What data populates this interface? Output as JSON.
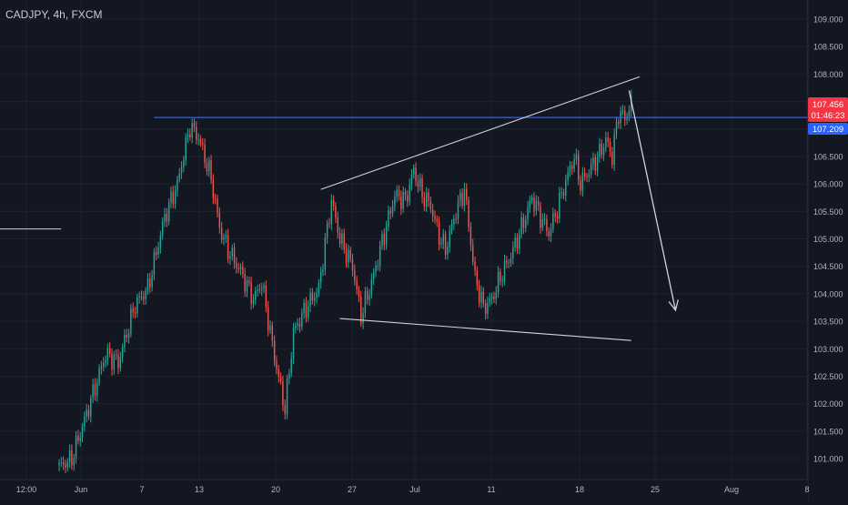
{
  "header": {
    "symbol_title": "CADJPY, 4h, FXCM"
  },
  "colors": {
    "background": "#131722",
    "grid": "#1e222d",
    "axis_text": "#b2b5be",
    "bull": "#26a69a",
    "bear": "#ef5350",
    "level_line": "#2962ff",
    "trend_line": "#d1d4dc",
    "price_badge": "#f23645",
    "level_badge": "#2962ff"
  },
  "price_scale": {
    "labels": [
      "109.000",
      "108.500",
      "108.000",
      "107.500",
      "107.000",
      "106.500",
      "106.000",
      "105.500",
      "105.000",
      "104.500",
      "104.000",
      "103.500",
      "103.000",
      "102.500",
      "102.000",
      "101.500",
      "101.000"
    ]
  },
  "time_scale": {
    "labels": [
      "12:00",
      "Jun",
      "7",
      "13",
      "20",
      "27",
      "Jul",
      "11",
      "18",
      "25",
      "Aug",
      "8"
    ]
  },
  "badges": {
    "last_price": "107.456",
    "countdown": "01:46:23",
    "level_price": "107.209"
  },
  "chart_data": {
    "type": "candlestick",
    "title": "CADJPY, 4h, FXCM",
    "ylim": [
      100.7,
      109.15
    ],
    "horizontal_level": 107.209,
    "last_price": 107.456,
    "anchors": [
      {
        "t": 0,
        "p": 100.85
      },
      {
        "t": 6,
        "p": 101.0
      },
      {
        "t": 12,
        "p": 101.7
      },
      {
        "t": 22,
        "p": 102.9
      },
      {
        "t": 28,
        "p": 102.75
      },
      {
        "t": 36,
        "p": 103.8
      },
      {
        "t": 42,
        "p": 104.1
      },
      {
        "t": 50,
        "p": 105.4
      },
      {
        "t": 56,
        "p": 106.0
      },
      {
        "t": 62,
        "p": 107.05
      },
      {
        "t": 66,
        "p": 106.85
      },
      {
        "t": 72,
        "p": 106.1
      },
      {
        "t": 76,
        "p": 105.2
      },
      {
        "t": 80,
        "p": 104.8
      },
      {
        "t": 86,
        "p": 104.4
      },
      {
        "t": 92,
        "p": 103.9
      },
      {
        "t": 96,
        "p": 104.2
      },
      {
        "t": 102,
        "p": 102.85
      },
      {
        "t": 107,
        "p": 101.9
      },
      {
        "t": 111,
        "p": 103.3
      },
      {
        "t": 117,
        "p": 103.75
      },
      {
        "t": 123,
        "p": 104.1
      },
      {
        "t": 129,
        "p": 105.7
      },
      {
        "t": 133,
        "p": 105.0
      },
      {
        "t": 139,
        "p": 104.5
      },
      {
        "t": 143,
        "p": 103.6
      },
      {
        "t": 148,
        "p": 104.2
      },
      {
        "t": 152,
        "p": 104.8
      },
      {
        "t": 159,
        "p": 105.8
      },
      {
        "t": 164,
        "p": 105.7
      },
      {
        "t": 168,
        "p": 106.25
      },
      {
        "t": 172,
        "p": 105.8
      },
      {
        "t": 176,
        "p": 105.6
      },
      {
        "t": 180,
        "p": 105.05
      },
      {
        "t": 183,
        "p": 104.8
      },
      {
        "t": 188,
        "p": 105.5
      },
      {
        "t": 192,
        "p": 105.9
      },
      {
        "t": 197,
        "p": 104.3
      },
      {
        "t": 201,
        "p": 103.75
      },
      {
        "t": 205,
        "p": 103.9
      },
      {
        "t": 209,
        "p": 104.3
      },
      {
        "t": 214,
        "p": 104.7
      },
      {
        "t": 220,
        "p": 105.3
      },
      {
        "t": 224,
        "p": 105.75
      },
      {
        "t": 228,
        "p": 105.4
      },
      {
        "t": 232,
        "p": 105.1
      },
      {
        "t": 236,
        "p": 105.55
      },
      {
        "t": 240,
        "p": 106.05
      },
      {
        "t": 244,
        "p": 106.5
      },
      {
        "t": 247,
        "p": 106.0
      },
      {
        "t": 252,
        "p": 106.3
      },
      {
        "t": 256,
        "p": 106.55
      },
      {
        "t": 259,
        "p": 106.8
      },
      {
        "t": 262,
        "p": 106.5
      },
      {
        "t": 265,
        "p": 107.3
      },
      {
        "t": 268,
        "p": 107.2
      },
      {
        "t": 271,
        "p": 107.45
      }
    ],
    "annotations": {
      "upper_trendline": [
        {
          "t": 124,
          "p": 105.9
        },
        {
          "t": 275,
          "p": 107.95
        }
      ],
      "lower_trendline": [
        {
          "t": 133,
          "p": 103.55
        },
        {
          "t": 271,
          "p": 103.15
        }
      ],
      "short_segment": [
        {
          "t": -33,
          "p": 105.18
        },
        {
          "t": 1,
          "p": 105.18
        }
      ],
      "projection_arrow": [
        {
          "t": 270,
          "p": 107.7
        },
        {
          "t": 292,
          "p": 103.7
        }
      ]
    }
  }
}
